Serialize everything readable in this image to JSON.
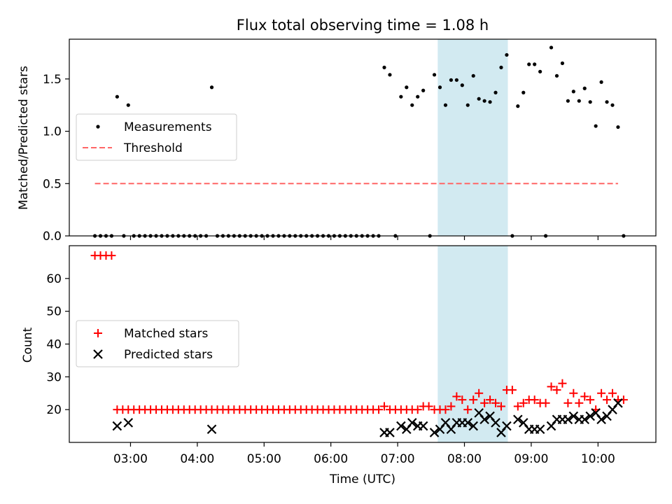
{
  "figure": {
    "title": "Flux total observing time = 1.08 h"
  },
  "chart_data": [
    {
      "type": "scatter",
      "panel": "top",
      "ylabel": "Matched/Predicted stars",
      "ylim": [
        0,
        1.88
      ],
      "yticks": [
        0.0,
        0.5,
        1.0,
        1.5
      ],
      "ytick_labels": [
        "0.0",
        "0.5",
        "1.0",
        "1.5"
      ],
      "xlim": [
        "02:05",
        "10:52"
      ],
      "highlight_span": [
        "07:36",
        "08:39"
      ],
      "highlight_color": "#add8e6",
      "grid": false,
      "legend_position": "center-left",
      "series": [
        {
          "name": "Measurements",
          "marker": "dot",
          "color": "#000000",
          "points": [
            [
              "02:28",
              0
            ],
            [
              "02:33",
              0
            ],
            [
              "02:38",
              0
            ],
            [
              "02:43",
              0
            ],
            [
              "02:48",
              1.33
            ],
            [
              "02:54",
              0
            ],
            [
              "02:58",
              1.25
            ],
            [
              "03:03",
              0
            ],
            [
              "03:08",
              0
            ],
            [
              "03:13",
              0
            ],
            [
              "03:18",
              0
            ],
            [
              "03:23",
              0
            ],
            [
              "03:28",
              0
            ],
            [
              "03:33",
              0
            ],
            [
              "03:38",
              0
            ],
            [
              "03:43",
              0
            ],
            [
              "03:48",
              0
            ],
            [
              "03:53",
              0
            ],
            [
              "03:58",
              0
            ],
            [
              "04:03",
              0
            ],
            [
              "04:08",
              0
            ],
            [
              "04:13",
              1.42
            ],
            [
              "04:18",
              0
            ],
            [
              "04:23",
              0
            ],
            [
              "04:28",
              0
            ],
            [
              "04:33",
              0
            ],
            [
              "04:38",
              0
            ],
            [
              "04:43",
              0
            ],
            [
              "04:48",
              0
            ],
            [
              "04:53",
              0
            ],
            [
              "04:58",
              0
            ],
            [
              "05:03",
              0
            ],
            [
              "05:08",
              0
            ],
            [
              "05:13",
              0
            ],
            [
              "05:18",
              0
            ],
            [
              "05:23",
              0
            ],
            [
              "05:28",
              0
            ],
            [
              "05:33",
              0
            ],
            [
              "05:38",
              0
            ],
            [
              "05:43",
              0
            ],
            [
              "05:48",
              0
            ],
            [
              "05:53",
              0
            ],
            [
              "05:58",
              0
            ],
            [
              "06:03",
              0
            ],
            [
              "06:08",
              0
            ],
            [
              "06:13",
              0
            ],
            [
              "06:18",
              0
            ],
            [
              "06:23",
              0
            ],
            [
              "06:28",
              0
            ],
            [
              "06:33",
              0
            ],
            [
              "06:38",
              0
            ],
            [
              "06:43",
              0
            ],
            [
              "06:48",
              1.61
            ],
            [
              "06:53",
              1.54
            ],
            [
              "06:58",
              0
            ],
            [
              "07:03",
              1.33
            ],
            [
              "07:08",
              1.42
            ],
            [
              "07:13",
              1.25
            ],
            [
              "07:18",
              1.33
            ],
            [
              "07:23",
              1.39
            ],
            [
              "07:29",
              0
            ],
            [
              "07:33",
              1.54
            ],
            [
              "07:38",
              1.42
            ],
            [
              "07:43",
              1.25
            ],
            [
              "07:48",
              1.49
            ],
            [
              "07:53",
              1.49
            ],
            [
              "07:58",
              1.44
            ],
            [
              "08:03",
              1.25
            ],
            [
              "08:08",
              1.53
            ],
            [
              "08:13",
              1.31
            ],
            [
              "08:18",
              1.29
            ],
            [
              "08:23",
              1.28
            ],
            [
              "08:28",
              1.37
            ],
            [
              "08:33",
              1.61
            ],
            [
              "08:38",
              1.73
            ],
            [
              "08:43",
              0
            ],
            [
              "08:48",
              1.24
            ],
            [
              "08:53",
              1.37
            ],
            [
              "08:58",
              1.64
            ],
            [
              "09:03",
              1.64
            ],
            [
              "09:08",
              1.57
            ],
            [
              "09:13",
              0
            ],
            [
              "09:18",
              1.8
            ],
            [
              "09:23",
              1.53
            ],
            [
              "09:28",
              1.65
            ],
            [
              "09:33",
              1.29
            ],
            [
              "09:38",
              1.38
            ],
            [
              "09:43",
              1.29
            ],
            [
              "09:48",
              1.41
            ],
            [
              "09:53",
              1.28
            ],
            [
              "09:58",
              1.05
            ],
            [
              "10:03",
              1.47
            ],
            [
              "10:08",
              1.28
            ],
            [
              "10:13",
              1.25
            ],
            [
              "10:18",
              1.04
            ],
            [
              "10:23",
              0
            ]
          ]
        },
        {
          "name": "Threshold",
          "marker": "dashed-line",
          "color": "#ff6666",
          "points": [
            [
              "02:28",
              0.5
            ],
            [
              "10:18",
              0.5
            ]
          ]
        }
      ]
    },
    {
      "type": "scatter",
      "panel": "bottom",
      "xlabel": "Time (UTC)",
      "ylabel": "Count",
      "ylim": [
        10,
        70
      ],
      "yticks": [
        20,
        30,
        40,
        50,
        60
      ],
      "ytick_labels": [
        "20",
        "30",
        "40",
        "50",
        "60"
      ],
      "xlim": [
        "02:05",
        "10:52"
      ],
      "xticks": [
        "03:00",
        "04:00",
        "05:00",
        "06:00",
        "07:00",
        "08:00",
        "09:00",
        "10:00"
      ],
      "xtick_labels": [
        "03:00",
        "04:00",
        "05:00",
        "06:00",
        "07:00",
        "08:00",
        "09:00",
        "10:00"
      ],
      "highlight_span": [
        "07:36",
        "08:39"
      ],
      "highlight_color": "#add8e6",
      "grid": false,
      "legend_position": "center-left",
      "series": [
        {
          "name": "Matched stars",
          "marker": "plus",
          "color": "#ff0000",
          "points": [
            [
              "02:28",
              67
            ],
            [
              "02:33",
              67
            ],
            [
              "02:38",
              67
            ],
            [
              "02:43",
              67
            ],
            [
              "02:48",
              20
            ],
            [
              "02:53",
              20
            ],
            [
              "02:58",
              20
            ],
            [
              "03:03",
              20
            ],
            [
              "03:08",
              20
            ],
            [
              "03:13",
              20
            ],
            [
              "03:18",
              20
            ],
            [
              "03:23",
              20
            ],
            [
              "03:28",
              20
            ],
            [
              "03:33",
              20
            ],
            [
              "03:38",
              20
            ],
            [
              "03:43",
              20
            ],
            [
              "03:48",
              20
            ],
            [
              "03:53",
              20
            ],
            [
              "03:58",
              20
            ],
            [
              "04:03",
              20
            ],
            [
              "04:08",
              20
            ],
            [
              "04:13",
              20
            ],
            [
              "04:18",
              20
            ],
            [
              "04:23",
              20
            ],
            [
              "04:28",
              20
            ],
            [
              "04:33",
              20
            ],
            [
              "04:38",
              20
            ],
            [
              "04:43",
              20
            ],
            [
              "04:48",
              20
            ],
            [
              "04:53",
              20
            ],
            [
              "04:58",
              20
            ],
            [
              "05:03",
              20
            ],
            [
              "05:08",
              20
            ],
            [
              "05:13",
              20
            ],
            [
              "05:18",
              20
            ],
            [
              "05:23",
              20
            ],
            [
              "05:28",
              20
            ],
            [
              "05:33",
              20
            ],
            [
              "05:38",
              20
            ],
            [
              "05:43",
              20
            ],
            [
              "05:48",
              20
            ],
            [
              "05:53",
              20
            ],
            [
              "05:58",
              20
            ],
            [
              "06:03",
              20
            ],
            [
              "06:08",
              20
            ],
            [
              "06:13",
              20
            ],
            [
              "06:18",
              20
            ],
            [
              "06:23",
              20
            ],
            [
              "06:28",
              20
            ],
            [
              "06:33",
              20
            ],
            [
              "06:38",
              20
            ],
            [
              "06:43",
              20
            ],
            [
              "06:48",
              21
            ],
            [
              "06:53",
              20
            ],
            [
              "06:58",
              20
            ],
            [
              "07:03",
              20
            ],
            [
              "07:08",
              20
            ],
            [
              "07:13",
              20
            ],
            [
              "07:18",
              20
            ],
            [
              "07:23",
              21
            ],
            [
              "07:28",
              21
            ],
            [
              "07:33",
              20
            ],
            [
              "07:38",
              20
            ],
            [
              "07:43",
              20
            ],
            [
              "07:48",
              21
            ],
            [
              "07:53",
              24
            ],
            [
              "07:58",
              23
            ],
            [
              "08:03",
              20
            ],
            [
              "08:08",
              23
            ],
            [
              "08:13",
              25
            ],
            [
              "08:18",
              22
            ],
            [
              "08:23",
              23
            ],
            [
              "08:28",
              22
            ],
            [
              "08:33",
              21
            ],
            [
              "08:38",
              26
            ],
            [
              "08:43",
              26
            ],
            [
              "08:48",
              21
            ],
            [
              "08:53",
              22
            ],
            [
              "08:58",
              23
            ],
            [
              "09:03",
              23
            ],
            [
              "09:08",
              22
            ],
            [
              "09:13",
              22
            ],
            [
              "09:18",
              27
            ],
            [
              "09:23",
              26
            ],
            [
              "09:28",
              28
            ],
            [
              "09:33",
              22
            ],
            [
              "09:38",
              25
            ],
            [
              "09:43",
              22
            ],
            [
              "09:48",
              24
            ],
            [
              "09:53",
              23
            ],
            [
              "09:58",
              20
            ],
            [
              "10:03",
              25
            ],
            [
              "10:08",
              23
            ],
            [
              "10:13",
              25
            ],
            [
              "10:18",
              23
            ],
            [
              "10:23",
              23
            ]
          ]
        },
        {
          "name": "Predicted stars",
          "marker": "x",
          "color": "#000000",
          "points": [
            [
              "02:48",
              15
            ],
            [
              "02:58",
              16
            ],
            [
              "04:13",
              14
            ],
            [
              "06:48",
              13
            ],
            [
              "06:53",
              13
            ],
            [
              "07:03",
              15
            ],
            [
              "07:08",
              14
            ],
            [
              "07:13",
              16
            ],
            [
              "07:18",
              15
            ],
            [
              "07:23",
              15
            ],
            [
              "07:33",
              13
            ],
            [
              "07:38",
              14
            ],
            [
              "07:43",
              16
            ],
            [
              "07:48",
              14
            ],
            [
              "07:53",
              16
            ],
            [
              "07:58",
              16
            ],
            [
              "08:03",
              16
            ],
            [
              "08:08",
              15
            ],
            [
              "08:13",
              19
            ],
            [
              "08:18",
              17
            ],
            [
              "08:23",
              18
            ],
            [
              "08:28",
              16
            ],
            [
              "08:33",
              13
            ],
            [
              "08:38",
              15
            ],
            [
              "08:48",
              17
            ],
            [
              "08:53",
              16
            ],
            [
              "08:58",
              14
            ],
            [
              "09:03",
              14
            ],
            [
              "09:08",
              14
            ],
            [
              "09:18",
              15
            ],
            [
              "09:23",
              17
            ],
            [
              "09:28",
              17
            ],
            [
              "09:33",
              17
            ],
            [
              "09:38",
              18
            ],
            [
              "09:43",
              17
            ],
            [
              "09:48",
              17
            ],
            [
              "09:53",
              18
            ],
            [
              "09:58",
              19
            ],
            [
              "10:03",
              17
            ],
            [
              "10:08",
              18
            ],
            [
              "10:13",
              20
            ],
            [
              "10:18",
              22
            ]
          ]
        }
      ]
    }
  ]
}
